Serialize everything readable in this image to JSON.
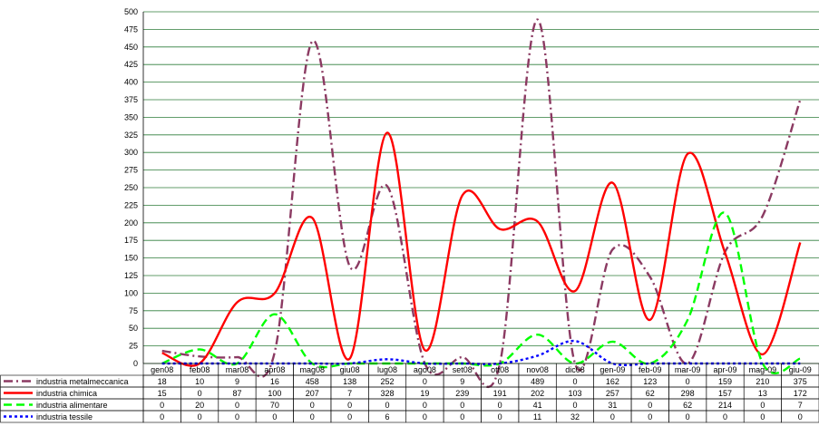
{
  "chart_data": {
    "type": "line",
    "title": "",
    "xlabel": "",
    "ylabel": "",
    "ylim": [
      0,
      500
    ],
    "ytick_step": 25,
    "grid": true,
    "grid_color": "#2f7d3a",
    "legend_placement": "data-table-left",
    "categories": [
      "gen08",
      "feb08",
      "mar08",
      "apr08",
      "mag08",
      "giu08",
      "lug08",
      "ago08",
      "set08",
      "ott08",
      "nov08",
      "dic08",
      "gen-09",
      "feb-09",
      "mar-09",
      "apr-09",
      "mag-09",
      "giu-09"
    ],
    "series": [
      {
        "name": "industria metalmeccanica",
        "color": "#8b3a62",
        "dash": "10,4,2,4",
        "values": [
          18,
          10,
          9,
          16,
          458,
          138,
          252,
          0,
          9,
          0,
          489,
          0,
          162,
          123,
          0,
          159,
          210,
          375
        ]
      },
      {
        "name": "industria chimica",
        "color": "#ff0000",
        "dash": "",
        "values": [
          15,
          0,
          87,
          100,
          207,
          7,
          328,
          19,
          239,
          191,
          202,
          103,
          257,
          62,
          298,
          157,
          13,
          172
        ]
      },
      {
        "name": "industria alimentare",
        "color": "#00ff00",
        "dash": "9,5",
        "values": [
          0,
          20,
          0,
          70,
          0,
          0,
          0,
          0,
          0,
          0,
          41,
          0,
          31,
          0,
          62,
          214,
          0,
          7
        ]
      },
      {
        "name": "industria tessile",
        "color": "#0000ff",
        "dash": "3,3",
        "values": [
          0,
          0,
          0,
          0,
          0,
          0,
          6,
          0,
          0,
          0,
          11,
          32,
          0,
          0,
          0,
          0,
          0,
          0
        ]
      }
    ]
  }
}
